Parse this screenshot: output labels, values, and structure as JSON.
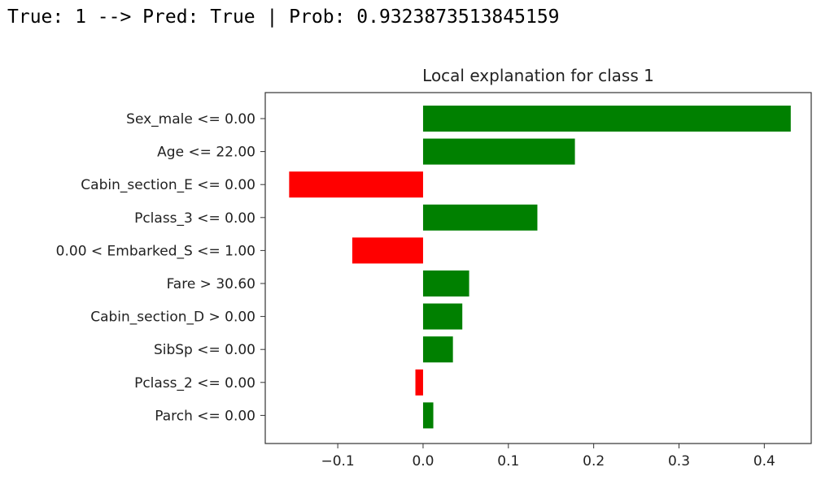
{
  "output_line": "True: 1 --> Pred: True | Prob: 0.9323873513845159",
  "chart_data": {
    "type": "bar",
    "orientation": "horizontal",
    "title": "Local explanation for class 1",
    "xlabel": "",
    "ylabel": "",
    "xlim": [
      -0.185,
      0.455
    ],
    "xticks": [
      -0.1,
      0.0,
      0.1,
      0.2,
      0.3,
      0.4
    ],
    "xtick_labels": [
      "−0.1",
      "0.0",
      "0.1",
      "0.2",
      "0.3",
      "0.4"
    ],
    "grid": false,
    "positive_color": "#008000",
    "negative_color": "#ff0000",
    "categories": [
      "Sex_male <= 0.00",
      "Age <= 22.00",
      "Cabin_section_E <= 0.00",
      "Pclass_3 <= 0.00",
      "0.00 < Embarked_S <= 1.00",
      "Fare > 30.60",
      "Cabin_section_D > 0.00",
      "SibSp <= 0.00",
      "Pclass_2 <= 0.00",
      "Parch <= 0.00"
    ],
    "values": [
      0.431,
      0.178,
      -0.157,
      0.134,
      -0.083,
      0.054,
      0.046,
      0.035,
      -0.009,
      0.012
    ]
  }
}
